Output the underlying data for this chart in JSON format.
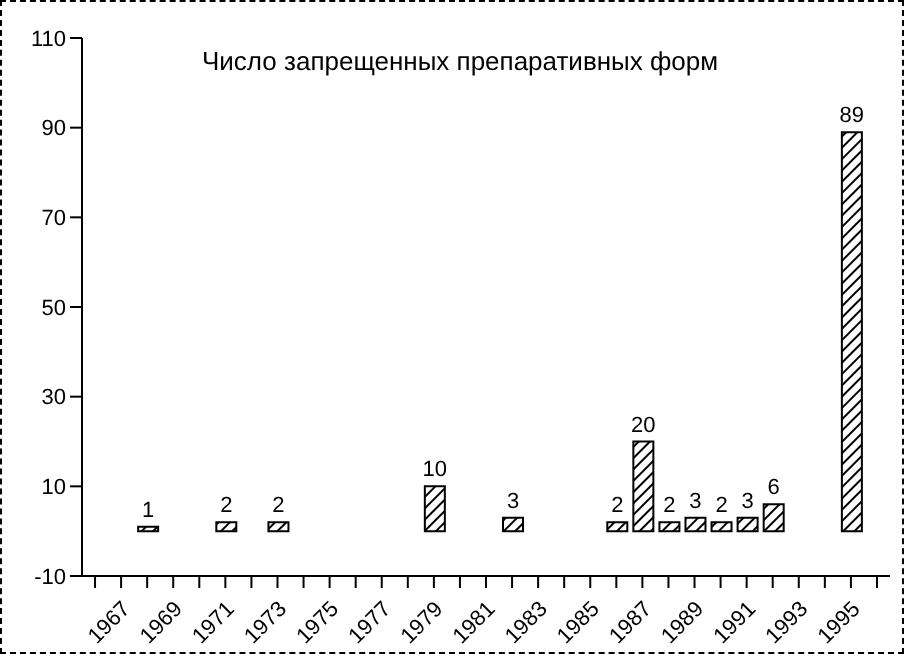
{
  "chart_data": {
    "type": "bar",
    "title": "Число запрещенных препаративных форм",
    "categories": [
      null,
      "1967",
      null,
      "1969",
      null,
      "1971",
      null,
      "1973",
      null,
      "1975",
      null,
      "1977",
      null,
      "1979",
      null,
      "1981",
      null,
      "1983",
      null,
      "1985",
      null,
      "1987",
      null,
      "1989",
      null,
      "1991",
      null,
      "1993",
      null,
      "1995",
      null
    ],
    "values": [
      null,
      null,
      1,
      null,
      null,
      2,
      null,
      2,
      null,
      null,
      null,
      null,
      null,
      10,
      null,
      null,
      3,
      null,
      null,
      null,
      2,
      20,
      2,
      3,
      2,
      3,
      6,
      null,
      null,
      89,
      null
    ],
    "color": "#000000",
    "data_labels": true,
    "ylim": [
      -10,
      110
    ],
    "yticks": [
      -10,
      10,
      30,
      50,
      70,
      90,
      110
    ],
    "grid": false
  }
}
